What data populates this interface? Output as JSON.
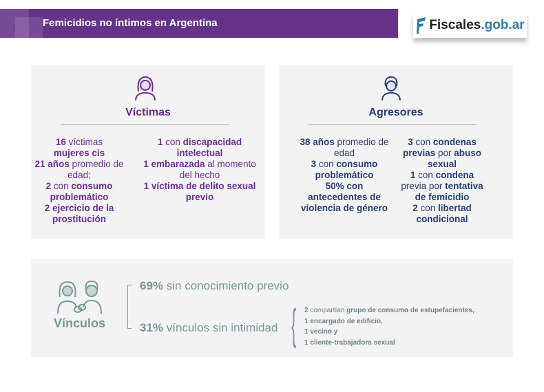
{
  "header": {
    "title": "Femicidios no íntimos en Argentina",
    "logo_a": "Fiscales",
    "logo_b": ".gob.ar"
  },
  "colors": {
    "purple": "#663389",
    "victims": "#6b2c91",
    "aggressors": "#243e73",
    "links": "#7a9696"
  },
  "victims": {
    "icon": "woman-icon",
    "title": "Víctimas",
    "left": [
      [
        {
          "t": "16",
          "b": 1
        },
        {
          "t": " víctimas"
        }
      ],
      [
        {
          "t": "mujeres cis",
          "b": 1
        }
      ],
      [
        {
          "t": "21 años",
          "b": 1
        },
        {
          "t": " promedio de edad;"
        }
      ],
      [
        {
          "t": "2",
          "b": 1
        },
        {
          "t": " con "
        },
        {
          "t": "consumo problemático",
          "b": 1
        }
      ],
      [
        {
          "t": "2 ejercicio de la prostitución",
          "b": 1
        }
      ]
    ],
    "right": [
      [
        {
          "t": "1",
          "b": 1
        },
        {
          "t": " con "
        },
        {
          "t": "discapacidad intelectual",
          "b": 1
        }
      ],
      [
        {
          "t": "1 embarazada",
          "b": 1
        },
        {
          "t": " al momento del hecho"
        }
      ],
      [
        {
          "t": "1 víctima de delito sexual previo",
          "b": 1
        }
      ]
    ]
  },
  "aggressors": {
    "icon": "man-icon",
    "title": "Agresores",
    "left": [
      [
        {
          "t": "38 años",
          "b": 1
        },
        {
          "t": " promedio de edad"
        }
      ],
      [
        {
          "t": "3",
          "b": 1
        },
        {
          "t": " con "
        },
        {
          "t": "consumo problemático",
          "b": 1
        }
      ],
      [
        {
          "t": "50% con antecedentes de violencia de género",
          "b": 1
        }
      ]
    ],
    "right": [
      [
        {
          "t": "3",
          "b": 1
        },
        {
          "t": " con "
        },
        {
          "t": "condenas previas",
          "b": 1
        },
        {
          "t": " por "
        },
        {
          "t": "abuso sexual",
          "b": 1
        }
      ],
      [
        {
          "t": "1",
          "b": 1
        },
        {
          "t": " con "
        },
        {
          "t": "condena",
          "b": 1
        },
        {
          "t": " previa por "
        },
        {
          "t": "tentativa de femicidio",
          "b": 1
        }
      ],
      [
        {
          "t": "2",
          "b": 1
        },
        {
          "t": " con "
        },
        {
          "t": "libertad condicional",
          "b": 1
        }
      ]
    ]
  },
  "links": {
    "icon": "linked-people-icon",
    "title": "Vínculos",
    "a_pct": "69%",
    "a_text": " sin conocimiento previo",
    "b_pct": "31%",
    "b_text": " vínculos sin intimidad",
    "items": [
      [
        {
          "t": "2",
          "b": 1
        },
        {
          "t": " compartían "
        },
        {
          "t": "grupo de consumo de estupefacientes,",
          "b": 1
        }
      ],
      [
        {
          "t": "1 encargado de edificio,",
          "b": 1
        }
      ],
      [
        {
          "t": "1 vecino y",
          "b": 1
        }
      ],
      [
        {
          "t": "1 cliente-trabajadora sexual",
          "b": 1
        }
      ]
    ]
  }
}
